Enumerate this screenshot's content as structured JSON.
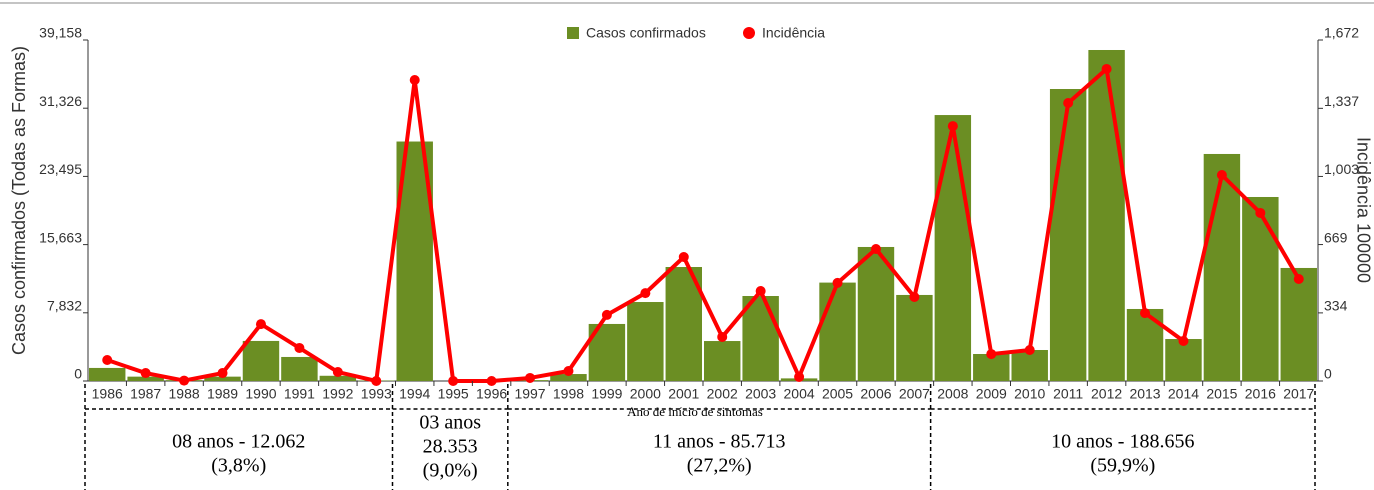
{
  "chart_data": {
    "type": "bar-line",
    "categories": [
      "1986",
      "1987",
      "1988",
      "1989",
      "1990",
      "1991",
      "1992",
      "1993",
      "1994",
      "1995",
      "1996",
      "1997",
      "1998",
      "1999",
      "2000",
      "2001",
      "2002",
      "2003",
      "2004",
      "2005",
      "2006",
      "2007",
      "2008",
      "2009",
      "2010",
      "2011",
      "2012",
      "2013",
      "2014",
      "2015",
      "2016",
      "2017"
    ],
    "series": [
      {
        "name": "Casos confirmados",
        "color": "#6b8e23",
        "values": [
          1500,
          500,
          100,
          500,
          4600,
          2760,
          600,
          50,
          27500,
          0,
          0,
          100,
          800,
          6550,
          9070,
          13090,
          4590,
          9760,
          300,
          11300,
          15390,
          9880,
          30540,
          3100,
          3560,
          33530,
          38010,
          8270,
          4820,
          26070,
          21130,
          12980
        ]
      },
      {
        "name": "Incidência",
        "color": "#ff0000",
        "axis": "y2",
        "values": [
          103,
          39,
          2,
          39,
          279,
          162,
          44,
          0,
          1476,
          0,
          0,
          15,
          49,
          324,
          431,
          608,
          216,
          441,
          20,
          481,
          647,
          412,
          1250,
          132,
          152,
          1363,
          1530,
          333,
          196,
          1010,
          824,
          500
        ]
      }
    ],
    "ylabel": "Casos confirmados (Todas as Formas)",
    "y2label": "Incidência 100000",
    "xlabel": "Ano de início de sintomas",
    "ylim": [
      0,
      39158
    ],
    "yticks": [
      0,
      {
        "value": 7832,
        "label": "7,832"
      },
      {
        "value": 15663,
        "label": "15,663"
      },
      {
        "value": 23495,
        "label": "23,495"
      },
      {
        "value": 31326,
        "label": "31,326"
      },
      {
        "value": 39158,
        "label": "39,158"
      }
    ],
    "y2lim": [
      0,
      1672
    ],
    "y2ticks": [
      0,
      334,
      669,
      {
        "value": 1003,
        "label": "1,003"
      },
      {
        "value": 1337,
        "label": "1,337"
      },
      {
        "value": 1672,
        "label": "1,672"
      }
    ],
    "annotations": [
      {
        "lines": [
          "08 anos - 12.062",
          "(3,8%)"
        ]
      },
      {
        "lines": [
          "03 anos",
          "28.353",
          "(9,0%)"
        ]
      },
      {
        "lines": [
          "11 anos - 85.713",
          "(27,2%)"
        ]
      },
      {
        "lines": [
          "10 anos - 188.656",
          "(59,9%)"
        ]
      }
    ]
  }
}
